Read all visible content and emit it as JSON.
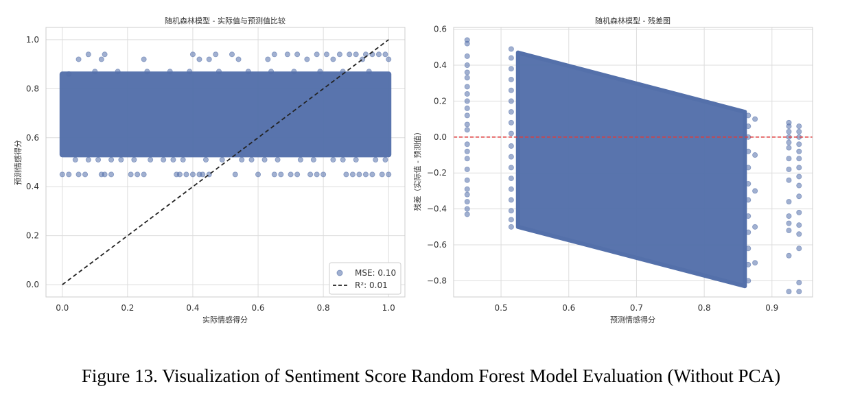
{
  "figure": {
    "caption": "Figure 13. Visualization of Sentiment Score Random Forest Model Evaluation (Without PCA)"
  },
  "colors": {
    "points": "#5470aa",
    "diagonal": "#222222",
    "zero_line": "#e03a3a",
    "grid": "#dddddd",
    "frame": "#cccccc"
  },
  "chart_data": [
    {
      "type": "scatter",
      "title": "随机森林模型 - 实际值与预测值比较",
      "xlabel": "实际情感得分",
      "ylabel": "预测情感得分",
      "xlim": [
        -0.05,
        1.05
      ],
      "ylim": [
        -0.05,
        1.05
      ],
      "xticks": [
        "0.0",
        "0.2",
        "0.4",
        "0.6",
        "0.8",
        "1.0"
      ],
      "yticks": [
        "0.0",
        "0.2",
        "0.4",
        "0.6",
        "0.8",
        "1.0"
      ],
      "grid": true,
      "legend": {
        "position": "bottom-right",
        "entries": [
          {
            "label": "MSE: 0.10",
            "kind": "marker"
          },
          {
            "label": "R²: 0.01",
            "kind": "dashed-line"
          }
        ]
      },
      "density_band": {
        "x_range": [
          0.0,
          1.0
        ],
        "y_range": [
          0.52,
          0.87
        ]
      },
      "reference_line": {
        "from": [
          0.0,
          0.0
        ],
        "to": [
          1.0,
          1.0
        ],
        "style": "dashed"
      },
      "points": [
        [
          0.0,
          0.45
        ],
        [
          0.02,
          0.45
        ],
        [
          0.05,
          0.45
        ],
        [
          0.07,
          0.45
        ],
        [
          0.12,
          0.45
        ],
        [
          0.13,
          0.45
        ],
        [
          0.15,
          0.45
        ],
        [
          0.21,
          0.45
        ],
        [
          0.23,
          0.45
        ],
        [
          0.25,
          0.45
        ],
        [
          0.35,
          0.45
        ],
        [
          0.36,
          0.45
        ],
        [
          0.38,
          0.45
        ],
        [
          0.4,
          0.45
        ],
        [
          0.42,
          0.45
        ],
        [
          0.43,
          0.45
        ],
        [
          0.45,
          0.45
        ],
        [
          0.53,
          0.45
        ],
        [
          0.6,
          0.45
        ],
        [
          0.65,
          0.45
        ],
        [
          0.67,
          0.45
        ],
        [
          0.7,
          0.45
        ],
        [
          0.72,
          0.45
        ],
        [
          0.76,
          0.45
        ],
        [
          0.78,
          0.45
        ],
        [
          0.8,
          0.45
        ],
        [
          0.87,
          0.45
        ],
        [
          0.89,
          0.45
        ],
        [
          0.91,
          0.45
        ],
        [
          0.93,
          0.45
        ],
        [
          0.95,
          0.45
        ],
        [
          0.98,
          0.45
        ],
        [
          1.0,
          0.45
        ],
        [
          0.04,
          0.51
        ],
        [
          0.08,
          0.51
        ],
        [
          0.11,
          0.51
        ],
        [
          0.15,
          0.51
        ],
        [
          0.18,
          0.51
        ],
        [
          0.22,
          0.51
        ],
        [
          0.27,
          0.51
        ],
        [
          0.31,
          0.51
        ],
        [
          0.34,
          0.51
        ],
        [
          0.37,
          0.51
        ],
        [
          0.44,
          0.51
        ],
        [
          0.49,
          0.51
        ],
        [
          0.55,
          0.51
        ],
        [
          0.58,
          0.51
        ],
        [
          0.62,
          0.51
        ],
        [
          0.66,
          0.51
        ],
        [
          0.73,
          0.51
        ],
        [
          0.77,
          0.51
        ],
        [
          0.83,
          0.51
        ],
        [
          0.86,
          0.51
        ],
        [
          0.9,
          0.51
        ],
        [
          0.96,
          0.51
        ],
        [
          0.99,
          0.51
        ],
        [
          0.08,
          0.94
        ],
        [
          0.13,
          0.94
        ],
        [
          0.05,
          0.92
        ],
        [
          0.12,
          0.92
        ],
        [
          0.25,
          0.92
        ],
        [
          0.4,
          0.94
        ],
        [
          0.42,
          0.92
        ],
        [
          0.45,
          0.92
        ],
        [
          0.47,
          0.94
        ],
        [
          0.52,
          0.94
        ],
        [
          0.54,
          0.92
        ],
        [
          0.63,
          0.92
        ],
        [
          0.65,
          0.94
        ],
        [
          0.69,
          0.94
        ],
        [
          0.72,
          0.94
        ],
        [
          0.75,
          0.92
        ],
        [
          0.78,
          0.94
        ],
        [
          0.81,
          0.94
        ],
        [
          0.83,
          0.92
        ],
        [
          0.85,
          0.94
        ],
        [
          0.88,
          0.94
        ],
        [
          0.9,
          0.94
        ],
        [
          0.92,
          0.92
        ],
        [
          0.93,
          0.94
        ],
        [
          0.95,
          0.94
        ],
        [
          0.97,
          0.94
        ],
        [
          0.99,
          0.94
        ],
        [
          1.0,
          0.92
        ],
        [
          0.02,
          0.86
        ],
        [
          0.1,
          0.87
        ],
        [
          0.17,
          0.87
        ],
        [
          0.26,
          0.87
        ],
        [
          0.33,
          0.87
        ],
        [
          0.39,
          0.87
        ],
        [
          0.48,
          0.87
        ],
        [
          0.57,
          0.87
        ],
        [
          0.64,
          0.87
        ],
        [
          0.71,
          0.87
        ],
        [
          0.79,
          0.87
        ],
        [
          0.86,
          0.87
        ],
        [
          0.94,
          0.87
        ]
      ]
    },
    {
      "type": "scatter",
      "title": "随机森林模型 - 残差图",
      "xlabel": "预测情感得分",
      "ylabel": "残差（实际值 - 预测值）",
      "xlim": [
        0.43,
        0.96
      ],
      "ylim": [
        -0.89,
        0.61
      ],
      "xticks": [
        "0.5",
        "0.6",
        "0.7",
        "0.8",
        "0.9"
      ],
      "yticks": [
        "0.6",
        "0.4",
        "0.2",
        "0.0",
        "−0.2",
        "−0.4",
        "−0.6",
        "−0.8"
      ],
      "grid": true,
      "zero_line": {
        "y": 0.0,
        "style": "dashed"
      },
      "density_band": {
        "polygon": [
          [
            0.525,
            0.47
          ],
          [
            0.86,
            0.14
          ],
          [
            0.86,
            -0.83
          ],
          [
            0.525,
            -0.5
          ]
        ]
      },
      "points": [
        [
          0.45,
          0.54
        ],
        [
          0.45,
          0.52
        ],
        [
          0.45,
          0.45
        ],
        [
          0.45,
          0.4
        ],
        [
          0.45,
          0.36
        ],
        [
          0.45,
          0.33
        ],
        [
          0.45,
          0.28
        ],
        [
          0.45,
          0.24
        ],
        [
          0.45,
          0.2
        ],
        [
          0.45,
          0.16
        ],
        [
          0.45,
          0.12
        ],
        [
          0.45,
          0.07
        ],
        [
          0.45,
          0.04
        ],
        [
          0.45,
          -0.04
        ],
        [
          0.45,
          -0.08
        ],
        [
          0.45,
          -0.12
        ],
        [
          0.45,
          -0.18
        ],
        [
          0.45,
          -0.24
        ],
        [
          0.45,
          -0.29
        ],
        [
          0.45,
          -0.32
        ],
        [
          0.45,
          -0.36
        ],
        [
          0.45,
          -0.4
        ],
        [
          0.45,
          -0.43
        ],
        [
          0.515,
          0.49
        ],
        [
          0.515,
          0.44
        ],
        [
          0.515,
          0.38
        ],
        [
          0.515,
          0.32
        ],
        [
          0.515,
          0.26
        ],
        [
          0.515,
          0.2
        ],
        [
          0.515,
          0.14
        ],
        [
          0.515,
          0.08
        ],
        [
          0.515,
          0.02
        ],
        [
          0.515,
          -0.05
        ],
        [
          0.515,
          -0.11
        ],
        [
          0.515,
          -0.17
        ],
        [
          0.515,
          -0.23
        ],
        [
          0.515,
          -0.29
        ],
        [
          0.515,
          -0.35
        ],
        [
          0.515,
          -0.41
        ],
        [
          0.515,
          -0.46
        ],
        [
          0.515,
          -0.5
        ],
        [
          0.865,
          0.12
        ],
        [
          0.865,
          0.06
        ],
        [
          0.865,
          0.0
        ],
        [
          0.865,
          -0.08
        ],
        [
          0.865,
          -0.17
        ],
        [
          0.865,
          -0.26
        ],
        [
          0.865,
          -0.35
        ],
        [
          0.865,
          -0.44
        ],
        [
          0.865,
          -0.53
        ],
        [
          0.865,
          -0.62
        ],
        [
          0.865,
          -0.71
        ],
        [
          0.865,
          -0.8
        ],
        [
          0.875,
          0.1
        ],
        [
          0.875,
          -0.1
        ],
        [
          0.875,
          -0.3
        ],
        [
          0.875,
          -0.5
        ],
        [
          0.875,
          -0.7
        ],
        [
          0.925,
          0.08
        ],
        [
          0.925,
          0.06
        ],
        [
          0.925,
          0.03
        ],
        [
          0.925,
          0.0
        ],
        [
          0.925,
          -0.03
        ],
        [
          0.925,
          -0.06
        ],
        [
          0.925,
          -0.12
        ],
        [
          0.925,
          -0.18
        ],
        [
          0.925,
          -0.24
        ],
        [
          0.925,
          -0.36
        ],
        [
          0.925,
          -0.44
        ],
        [
          0.925,
          -0.48
        ],
        [
          0.925,
          -0.52
        ],
        [
          0.925,
          -0.66
        ],
        [
          0.925,
          -0.86
        ],
        [
          0.94,
          0.06
        ],
        [
          0.94,
          0.03
        ],
        [
          0.94,
          0.0
        ],
        [
          0.94,
          -0.04
        ],
        [
          0.94,
          -0.08
        ],
        [
          0.94,
          -0.12
        ],
        [
          0.94,
          -0.17
        ],
        [
          0.94,
          -0.22
        ],
        [
          0.94,
          -0.27
        ],
        [
          0.94,
          -0.33
        ],
        [
          0.94,
          -0.42
        ],
        [
          0.94,
          -0.49
        ],
        [
          0.94,
          -0.54
        ],
        [
          0.94,
          -0.62
        ],
        [
          0.94,
          -0.81
        ],
        [
          0.94,
          -0.86
        ]
      ]
    }
  ]
}
